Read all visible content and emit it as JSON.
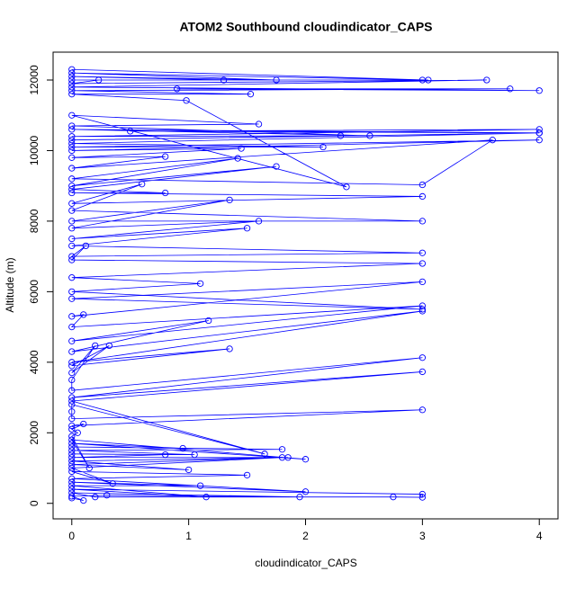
{
  "chart_data": {
    "type": "line",
    "markers": true,
    "title": "ATOM2 Southbound cloudindicator_CAPS",
    "xlabel": "cloudindicator_CAPS",
    "ylabel": "Altitude (m)",
    "color": "#0000ff",
    "xlim": [
      -0.16,
      4.16
    ],
    "ylim": [
      -440,
      12790
    ],
    "xticks": [
      0,
      1,
      2,
      3,
      4
    ],
    "yticks": [
      0,
      2000,
      4000,
      6000,
      8000,
      10000,
      12000
    ],
    "x": [
      0,
      0.1,
      0,
      0.3,
      1.95,
      0,
      0.2,
      2.75,
      3,
      3,
      0,
      1.15,
      0,
      1.1,
      0,
      2,
      0,
      1.5,
      0,
      0.35,
      0,
      1.8,
      0,
      1,
      0,
      1.85,
      0,
      0.8,
      0,
      1.05,
      0,
      1.8,
      0,
      0.95,
      0,
      2.0,
      0,
      0.15,
      0,
      0.05,
      0,
      0.1,
      0,
      3,
      0,
      0,
      0,
      1.65,
      0,
      3,
      0,
      3,
      0,
      0,
      0.2,
      0,
      0.32,
      0,
      1.35,
      0,
      3,
      0,
      1.17,
      0,
      3,
      0,
      0.1,
      0,
      3,
      0,
      3,
      0,
      1.1,
      0,
      3,
      0,
      0.12,
      0,
      3,
      0,
      1.5,
      0,
      1.6,
      0,
      1.35,
      0,
      3,
      0,
      0.6,
      0,
      3,
      0,
      0.8,
      0,
      1.75,
      0,
      1.42,
      0,
      3,
      3.6,
      0,
      0.8,
      0,
      1.45,
      0,
      4,
      0,
      2.15,
      0,
      4,
      0,
      2.3,
      0,
      4,
      0.5,
      4,
      0,
      2.55,
      0,
      1.6,
      0,
      2.35,
      0.98,
      0,
      1.53,
      0,
      3.75,
      0.9,
      4,
      0,
      3.55,
      0,
      0.23,
      3,
      0,
      1.3,
      0,
      1.75,
      0,
      3.05,
      0
    ],
    "values": [
      150,
      80,
      200,
      230,
      180,
      300,
      180,
      180,
      170,
      260,
      400,
      180,
      500,
      500,
      600,
      330,
      700,
      800,
      900,
      560,
      1000,
      1300,
      1100,
      950,
      1200,
      1300,
      1300,
      1380,
      1400,
      1380,
      1500,
      1530,
      1600,
      1560,
      1700,
      1250,
      1800,
      1000,
      1900,
      2000,
      2100,
      2250,
      2200,
      2650,
      2400,
      2600,
      2800,
      1400,
      2900,
      3730,
      3000,
      4130,
      3200,
      3500,
      4470,
      3700,
      4470,
      3900,
      4380,
      4000,
      5450,
      4300,
      5180,
      4600,
      5600,
      5000,
      5350,
      5300,
      6280,
      5800,
      5500,
      6000,
      6230,
      6400,
      6800,
      6900,
      7300,
      7000,
      7100,
      7300,
      7800,
      7500,
      8000,
      7800,
      8600,
      8000,
      8000,
      8300,
      9050,
      8500,
      8700,
      8800,
      8800,
      8900,
      9550,
      9000,
      9780,
      9200,
      9030,
      10300,
      9500,
      9830,
      9800,
      10060,
      10000,
      10300,
      10100,
      10100,
      10200,
      10500,
      10300,
      10420,
      10400,
      10600,
      10550,
      10500,
      10600,
      10420,
      10700,
      10750,
      11000,
      8970,
      11420,
      11600,
      11600,
      11700,
      11750,
      11750,
      11700,
      11800,
      12000,
      11900,
      12000,
      12000,
      12000,
      12000,
      12100,
      12000,
      12200,
      12000,
      12300
    ]
  }
}
